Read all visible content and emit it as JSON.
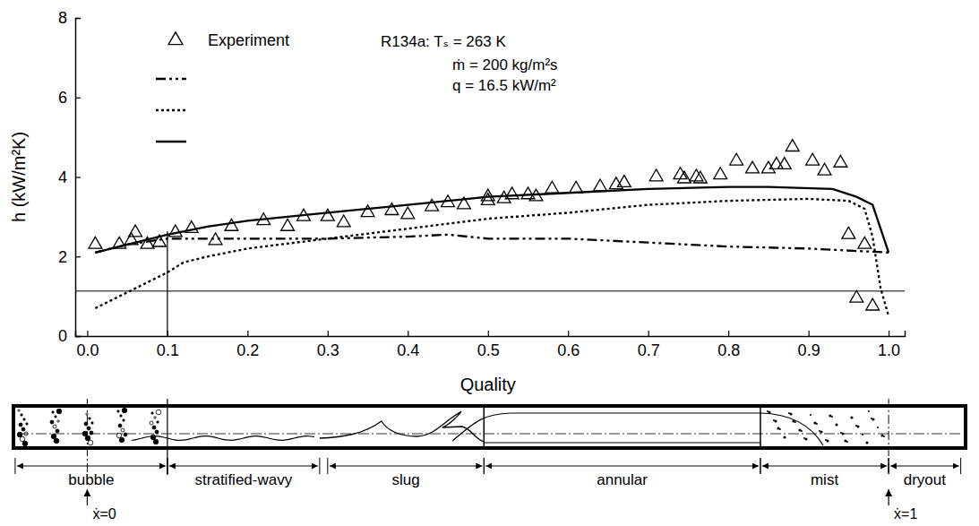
{
  "chart_data": {
    "type": "line",
    "xlabel": "Quality",
    "ylabel": "h (kW/m²K)",
    "annotations": [
      "R134a: Tₛ = 263 K",
      "ṁ = 200 kg/m²s",
      "q = 16.5 kW/m²"
    ],
    "xlim": [
      -0.015,
      1.02
    ],
    "ylim": [
      0,
      8
    ],
    "xticks": [
      {
        "value": 0,
        "label": "0.0"
      },
      0.1,
      0.2,
      0.3,
      0.4,
      0.5,
      0.6,
      0.7,
      0.8,
      0.9,
      {
        "value": 1,
        "label": "1.0"
      }
    ],
    "yticks": [
      0,
      2,
      4,
      6,
      8
    ],
    "legend": "upper left",
    "hline": 1.13,
    "vline": {
      "x": 0.1,
      "y": 2.63
    },
    "x_marks": [
      {
        "value": 0,
        "label": "ẋ=0"
      },
      {
        "value": 1,
        "label": "ẋ=1"
      }
    ],
    "regimes": [
      {
        "label": "bubble",
        "from": -0.09,
        "to": 0.1
      },
      {
        "label": "stratified-wavy",
        "from": 0.1,
        "to": 0.29
      },
      {
        "label": "slug",
        "from": 0.3,
        "to": 0.495
      },
      {
        "label": "annular",
        "from": 0.495,
        "to": 0.84
      },
      {
        "label": "mist",
        "from": 0.84,
        "to": 1.0
      },
      {
        "label": "dryout",
        "from": 1.0,
        "to": 1.09
      }
    ],
    "series": [
      {
        "name": "Experiment",
        "type": "scatter",
        "marker": "triangle",
        "color": "#000000",
        "x": [
          0.01,
          0.04,
          0.055,
          0.06,
          0.075,
          0.09,
          0.11,
          0.13,
          0.16,
          0.18,
          0.22,
          0.25,
          0.27,
          0.3,
          0.32,
          0.35,
          0.38,
          0.4,
          0.43,
          0.45,
          0.47,
          0.5,
          0.5,
          0.52,
          0.53,
          0.55,
          0.56,
          0.58,
          0.61,
          0.64,
          0.66,
          0.67,
          0.71,
          0.74,
          0.745,
          0.76,
          0.765,
          0.79,
          0.81,
          0.83,
          0.85,
          0.86,
          0.87,
          0.88,
          0.905,
          0.92,
          0.94,
          0.95,
          0.96,
          0.97,
          0.98
        ],
        "values": [
          2.3,
          2.3,
          2.4,
          2.6,
          2.3,
          2.35,
          2.6,
          2.7,
          2.4,
          2.75,
          2.9,
          2.75,
          3.0,
          3.0,
          2.85,
          3.1,
          3.15,
          3.05,
          3.25,
          3.35,
          3.3,
          3.5,
          3.4,
          3.45,
          3.55,
          3.55,
          3.5,
          3.7,
          3.7,
          3.75,
          3.8,
          3.85,
          4.0,
          4.05,
          3.95,
          4.0,
          3.95,
          4.05,
          4.4,
          4.2,
          4.2,
          4.3,
          4.3,
          4.75,
          4.4,
          4.15,
          4.35,
          2.55,
          0.95,
          2.3,
          0.75
        ]
      },
      {
        "type": "line",
        "line_style": "dashdot",
        "color": "#000000",
        "x": [
          0.01,
          0.05,
          0.1,
          0.2,
          0.3,
          0.4,
          0.45,
          0.5,
          0.6,
          0.7,
          0.8,
          0.9,
          1.0
        ],
        "values": [
          2.1,
          2.3,
          2.45,
          2.45,
          2.45,
          2.5,
          2.55,
          2.45,
          2.45,
          2.35,
          2.25,
          2.2,
          2.1
        ]
      },
      {
        "type": "line",
        "line_style": "dotted",
        "color": "#000000",
        "x": [
          0.01,
          0.05,
          0.1,
          0.12,
          0.15,
          0.2,
          0.3,
          0.4,
          0.5,
          0.6,
          0.7,
          0.8,
          0.9,
          0.95,
          0.97,
          0.98,
          0.99,
          1.0
        ],
        "values": [
          0.7,
          1.1,
          1.6,
          1.85,
          2.0,
          2.2,
          2.45,
          2.7,
          2.95,
          3.1,
          3.3,
          3.4,
          3.45,
          3.4,
          3.2,
          2.5,
          1.2,
          0.5
        ]
      },
      {
        "type": "line",
        "line_style": "solid",
        "color": "#000000",
        "x": [
          0.01,
          0.05,
          0.1,
          0.15,
          0.2,
          0.3,
          0.4,
          0.5,
          0.6,
          0.7,
          0.8,
          0.85,
          0.93,
          0.96,
          0.98,
          1.0
        ],
        "values": [
          2.1,
          2.3,
          2.55,
          2.75,
          2.9,
          3.1,
          3.3,
          3.5,
          3.6,
          3.7,
          3.75,
          3.75,
          3.7,
          3.5,
          3.3,
          2.1
        ]
      }
    ]
  }
}
